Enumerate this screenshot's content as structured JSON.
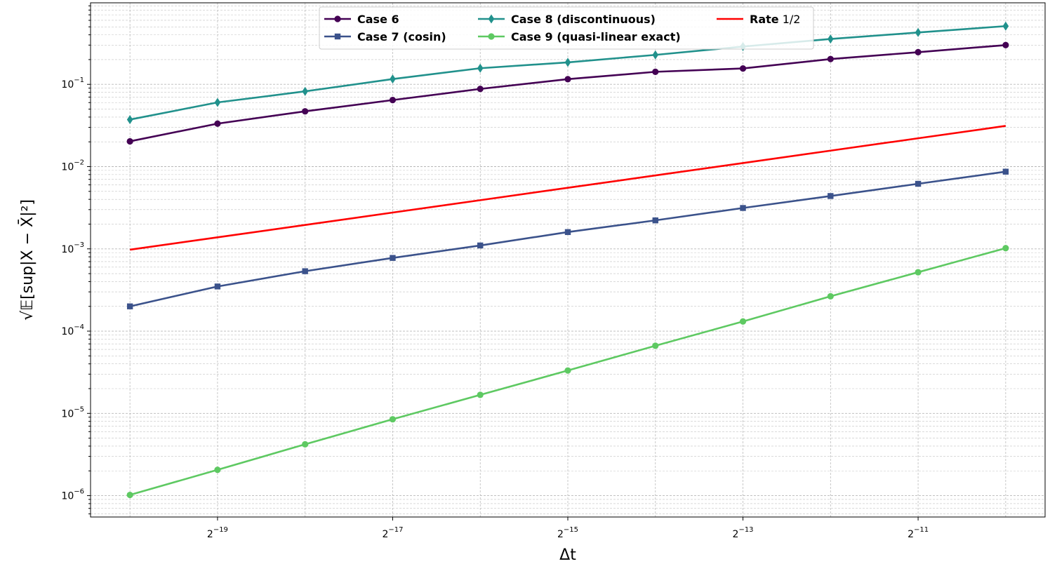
{
  "chart_data": {
    "type": "line",
    "xscale": "log2",
    "yscale": "log10",
    "xlabel": "Δt",
    "ylabel": "√𝔼[sup|X − X̄|²]",
    "x": [
      "2^-20",
      "2^-19",
      "2^-18",
      "2^-17",
      "2^-16",
      "2^-15",
      "2^-14",
      "2^-13",
      "2^-12",
      "2^-11",
      "2^-10"
    ],
    "x_exponents": [
      -20,
      -19,
      -18,
      -17,
      -16,
      -15,
      -14,
      -13,
      -12,
      -11,
      -10
    ],
    "x_ticks": [
      {
        "exp": -19,
        "base": "2",
        "sup": "−19"
      },
      {
        "exp": -17,
        "base": "2",
        "sup": "−17"
      },
      {
        "exp": -15,
        "base": "2",
        "sup": "−15"
      },
      {
        "exp": -13,
        "base": "2",
        "sup": "−13"
      },
      {
        "exp": -11,
        "base": "2",
        "sup": "−11"
      }
    ],
    "y_ticks": [
      {
        "exp": -6,
        "base": "10",
        "sup": "−6"
      },
      {
        "exp": -5,
        "base": "10",
        "sup": "−5"
      },
      {
        "exp": -4,
        "base": "10",
        "sup": "−4"
      },
      {
        "exp": -3,
        "base": "10",
        "sup": "−3"
      },
      {
        "exp": -2,
        "base": "10",
        "sup": "−2"
      },
      {
        "exp": -1,
        "base": "10",
        "sup": "−1"
      }
    ],
    "ylim": [
      5.5e-07,
      0.98
    ],
    "grid": true,
    "legend": {
      "position": "top-center",
      "columns": 3,
      "order": [
        "Case 6",
        "Case 8 (discontinuous)",
        "Rate 1/2",
        "Case 7 (cosin)",
        "Case 9 (quasi-linear exact)"
      ]
    },
    "series": [
      {
        "name": "Case 6",
        "color": "#440154",
        "marker": "circle",
        "values": [
          0.0203,
          0.0333,
          0.047,
          0.0644,
          0.088,
          0.1156,
          0.142,
          0.156,
          0.203,
          0.246,
          0.3
        ]
      },
      {
        "name": "Case 7 (cosin)",
        "color": "#3b528b",
        "marker": "square",
        "values": [
          0.0002,
          0.000349,
          0.000535,
          0.000776,
          0.0011,
          0.0016,
          0.00222,
          0.00314,
          0.00439,
          0.00618,
          0.00868
        ]
      },
      {
        "name": "Case 8 (discontinuous)",
        "color": "#21918c",
        "marker": "diamond",
        "values": [
          0.0373,
          0.0603,
          0.0822,
          0.116,
          0.157,
          0.185,
          0.228,
          0.288,
          0.356,
          0.427,
          0.51
        ]
      },
      {
        "name": "Case 9 (quasi-linear exact)",
        "color": "#5ec962",
        "marker": "circle",
        "values": [
          1.02e-06,
          2.06e-06,
          4.21e-06,
          8.48e-06,
          1.68e-05,
          3.32e-05,
          6.64e-05,
          0.000131,
          0.000265,
          0.00052,
          0.00102
        ]
      },
      {
        "name": "Rate 1/2",
        "label_bold": "Rate",
        "label_normal": " 1/2",
        "color": "#ff0000",
        "marker": "none",
        "values": [
          0.000977,
          0.001381,
          0.001953,
          0.002762,
          0.003906,
          0.005524,
          0.007813,
          0.011049,
          0.015625,
          0.022097,
          0.03125
        ]
      }
    ]
  }
}
